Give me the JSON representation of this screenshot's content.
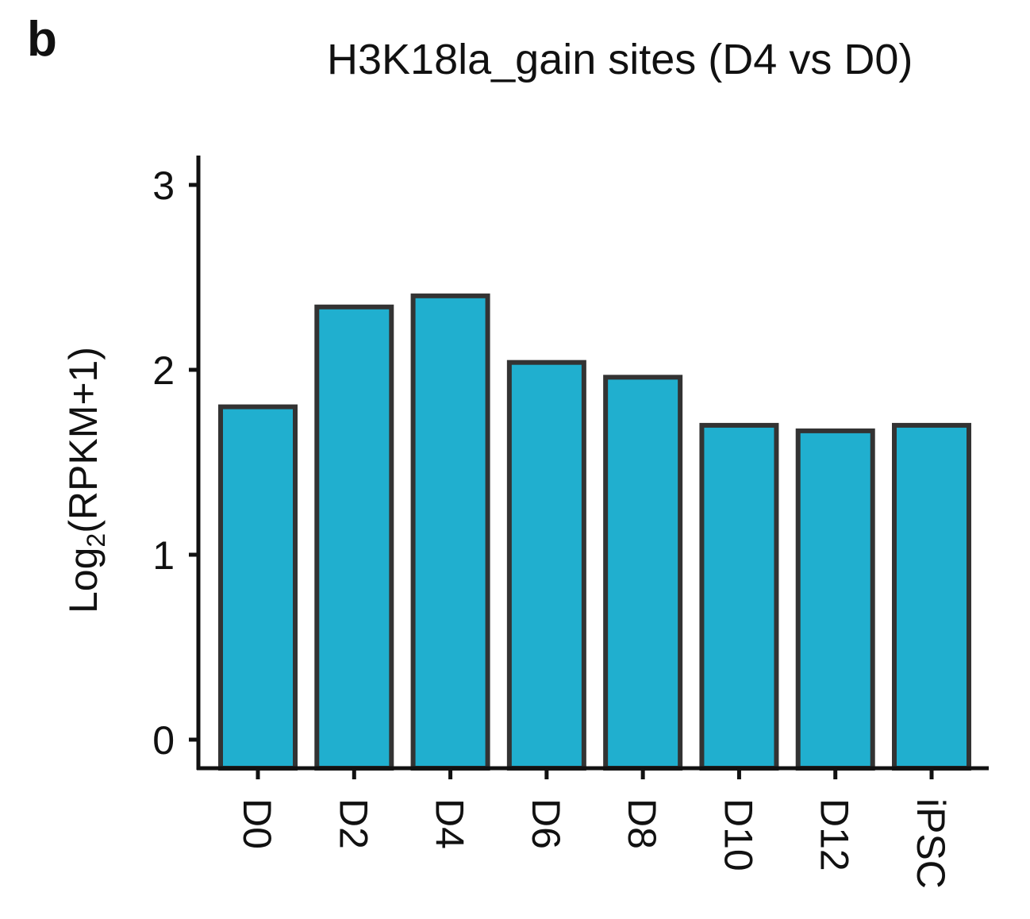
{
  "panel_label": "b",
  "chart_data": {
    "type": "bar",
    "title": "H3K18la_gain sites (D4 vs D0)",
    "xlabel": "",
    "ylabel_main": "Log",
    "ylabel_sub": "2",
    "ylabel_rest": "(RPKM+1)",
    "categories": [
      "D0",
      "D2",
      "D4",
      "D6",
      "D8",
      "D10",
      "D12",
      "iPSC"
    ],
    "values": [
      1.8,
      2.34,
      2.4,
      2.04,
      1.96,
      1.7,
      1.67,
      1.7
    ],
    "ylim": [
      0,
      3.15
    ],
    "yticks": [
      "0",
      "1",
      "2",
      "3"
    ],
    "bar_color": "#20afcf",
    "edge_color": "#333333",
    "grid": false,
    "legend": "none"
  }
}
